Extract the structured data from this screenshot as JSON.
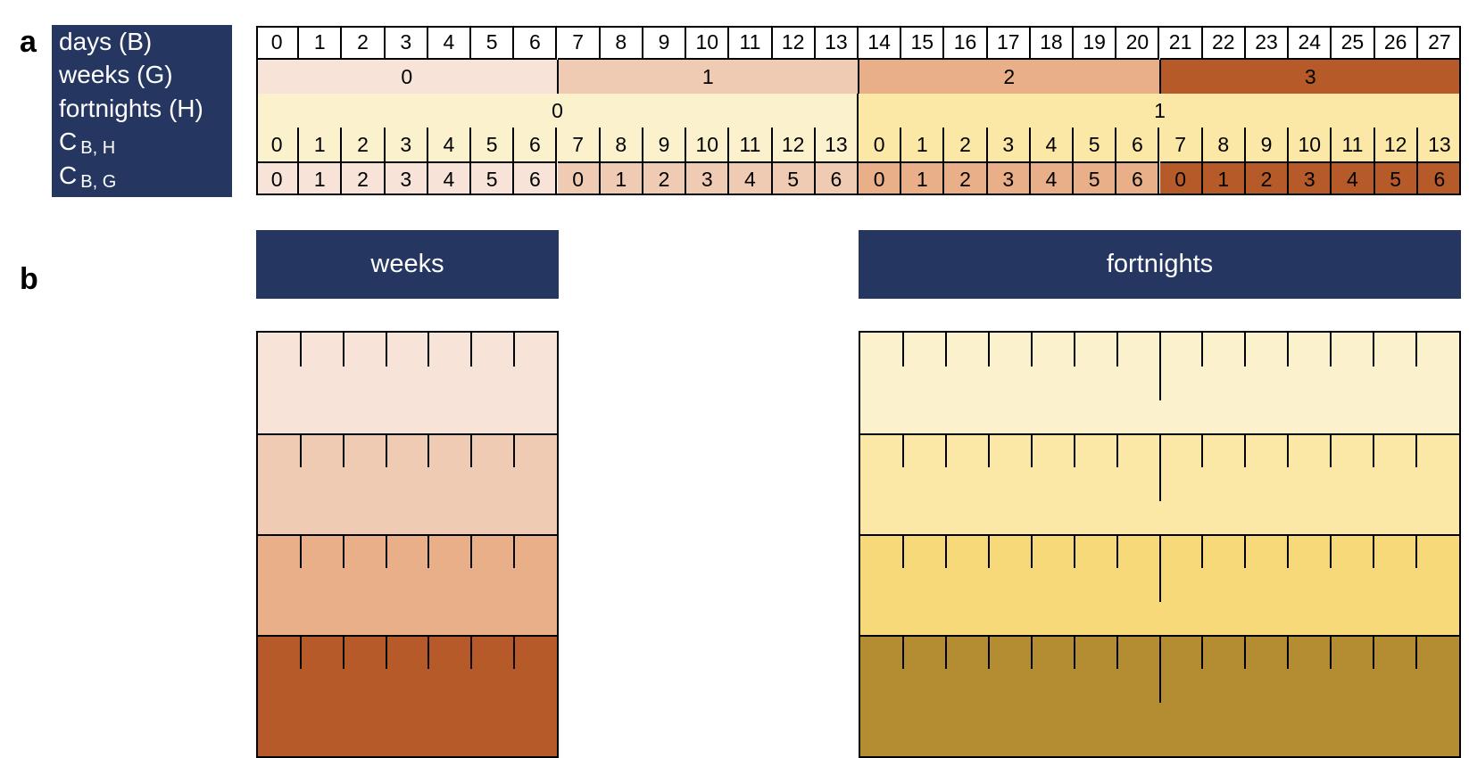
{
  "panel_a": {
    "letter": "a",
    "row_labels": {
      "days": "days (B)",
      "weeks": "weeks (G)",
      "fortnights": "fortnights (H)",
      "c_bh_main": "C",
      "c_bh_sub": "B, H",
      "c_bg_main": "C",
      "c_bg_sub": "B, G"
    },
    "days": [
      "0",
      "1",
      "2",
      "3",
      "4",
      "5",
      "6",
      "7",
      "8",
      "9",
      "10",
      "11",
      "12",
      "13",
      "14",
      "15",
      "16",
      "17",
      "18",
      "19",
      "20",
      "21",
      "22",
      "23",
      "24",
      "25",
      "26",
      "27"
    ],
    "weeks": [
      "0",
      "1",
      "2",
      "3"
    ],
    "fortnights": [
      "0",
      "1"
    ],
    "c_bh": [
      "0",
      "1",
      "2",
      "3",
      "4",
      "5",
      "6",
      "7",
      "8",
      "9",
      "10",
      "11",
      "12",
      "13",
      "0",
      "1",
      "2",
      "3",
      "4",
      "5",
      "6",
      "7",
      "8",
      "9",
      "10",
      "11",
      "12",
      "13"
    ],
    "c_bg": [
      "0",
      "1",
      "2",
      "3",
      "4",
      "5",
      "6",
      "0",
      "1",
      "2",
      "3",
      "4",
      "5",
      "6",
      "0",
      "1",
      "2",
      "3",
      "4",
      "5",
      "6",
      "0",
      "1",
      "2",
      "3",
      "4",
      "5",
      "6"
    ]
  },
  "panel_b": {
    "letter": "b",
    "weeks_title": "weeks",
    "fortnights_title": "fortnights",
    "weeks_bands": 4,
    "weeks_days_per_band": 7,
    "fortnights_bands": 4,
    "fortnights_days_per_band": 14
  },
  "colors": {
    "navy": "#253761",
    "week": [
      "#f7e3d7",
      "#f0cbb3",
      "#e8af89",
      "#b65a29"
    ],
    "fortnight": [
      "#fcf1cd",
      "#fbe7a6",
      "#f8d97a",
      "#b48d32"
    ]
  }
}
